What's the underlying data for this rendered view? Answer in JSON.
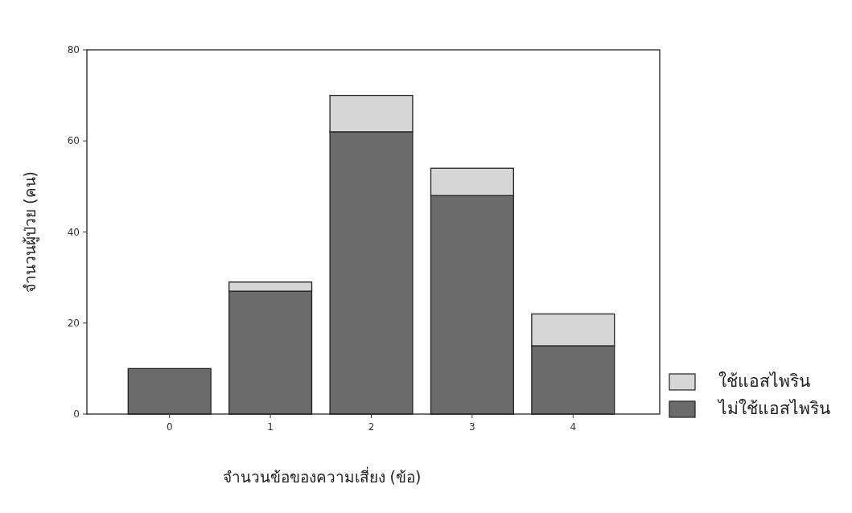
{
  "chart_data": {
    "type": "bar",
    "stacked": true,
    "xlabel": "จำนวนข้อของความเสี่ยง (ข้อ)",
    "ylabel": "จำนวนผู้ป่วย (คน)",
    "categories": [
      "0",
      "1",
      "2",
      "3",
      "4"
    ],
    "series": [
      {
        "name": "ไม่ใช้แอสไพริน",
        "color": "#6b6b6b",
        "values": [
          10,
          27,
          62,
          48,
          15
        ]
      },
      {
        "name": "ใช้แอสไพริน",
        "color": "#d6d6d6",
        "values": [
          0,
          2,
          8,
          6,
          7
        ]
      }
    ],
    "ylim": [
      0,
      80
    ],
    "yticks": [
      0,
      20,
      40,
      60,
      80
    ],
    "legend": "bottom right",
    "grid": false
  }
}
